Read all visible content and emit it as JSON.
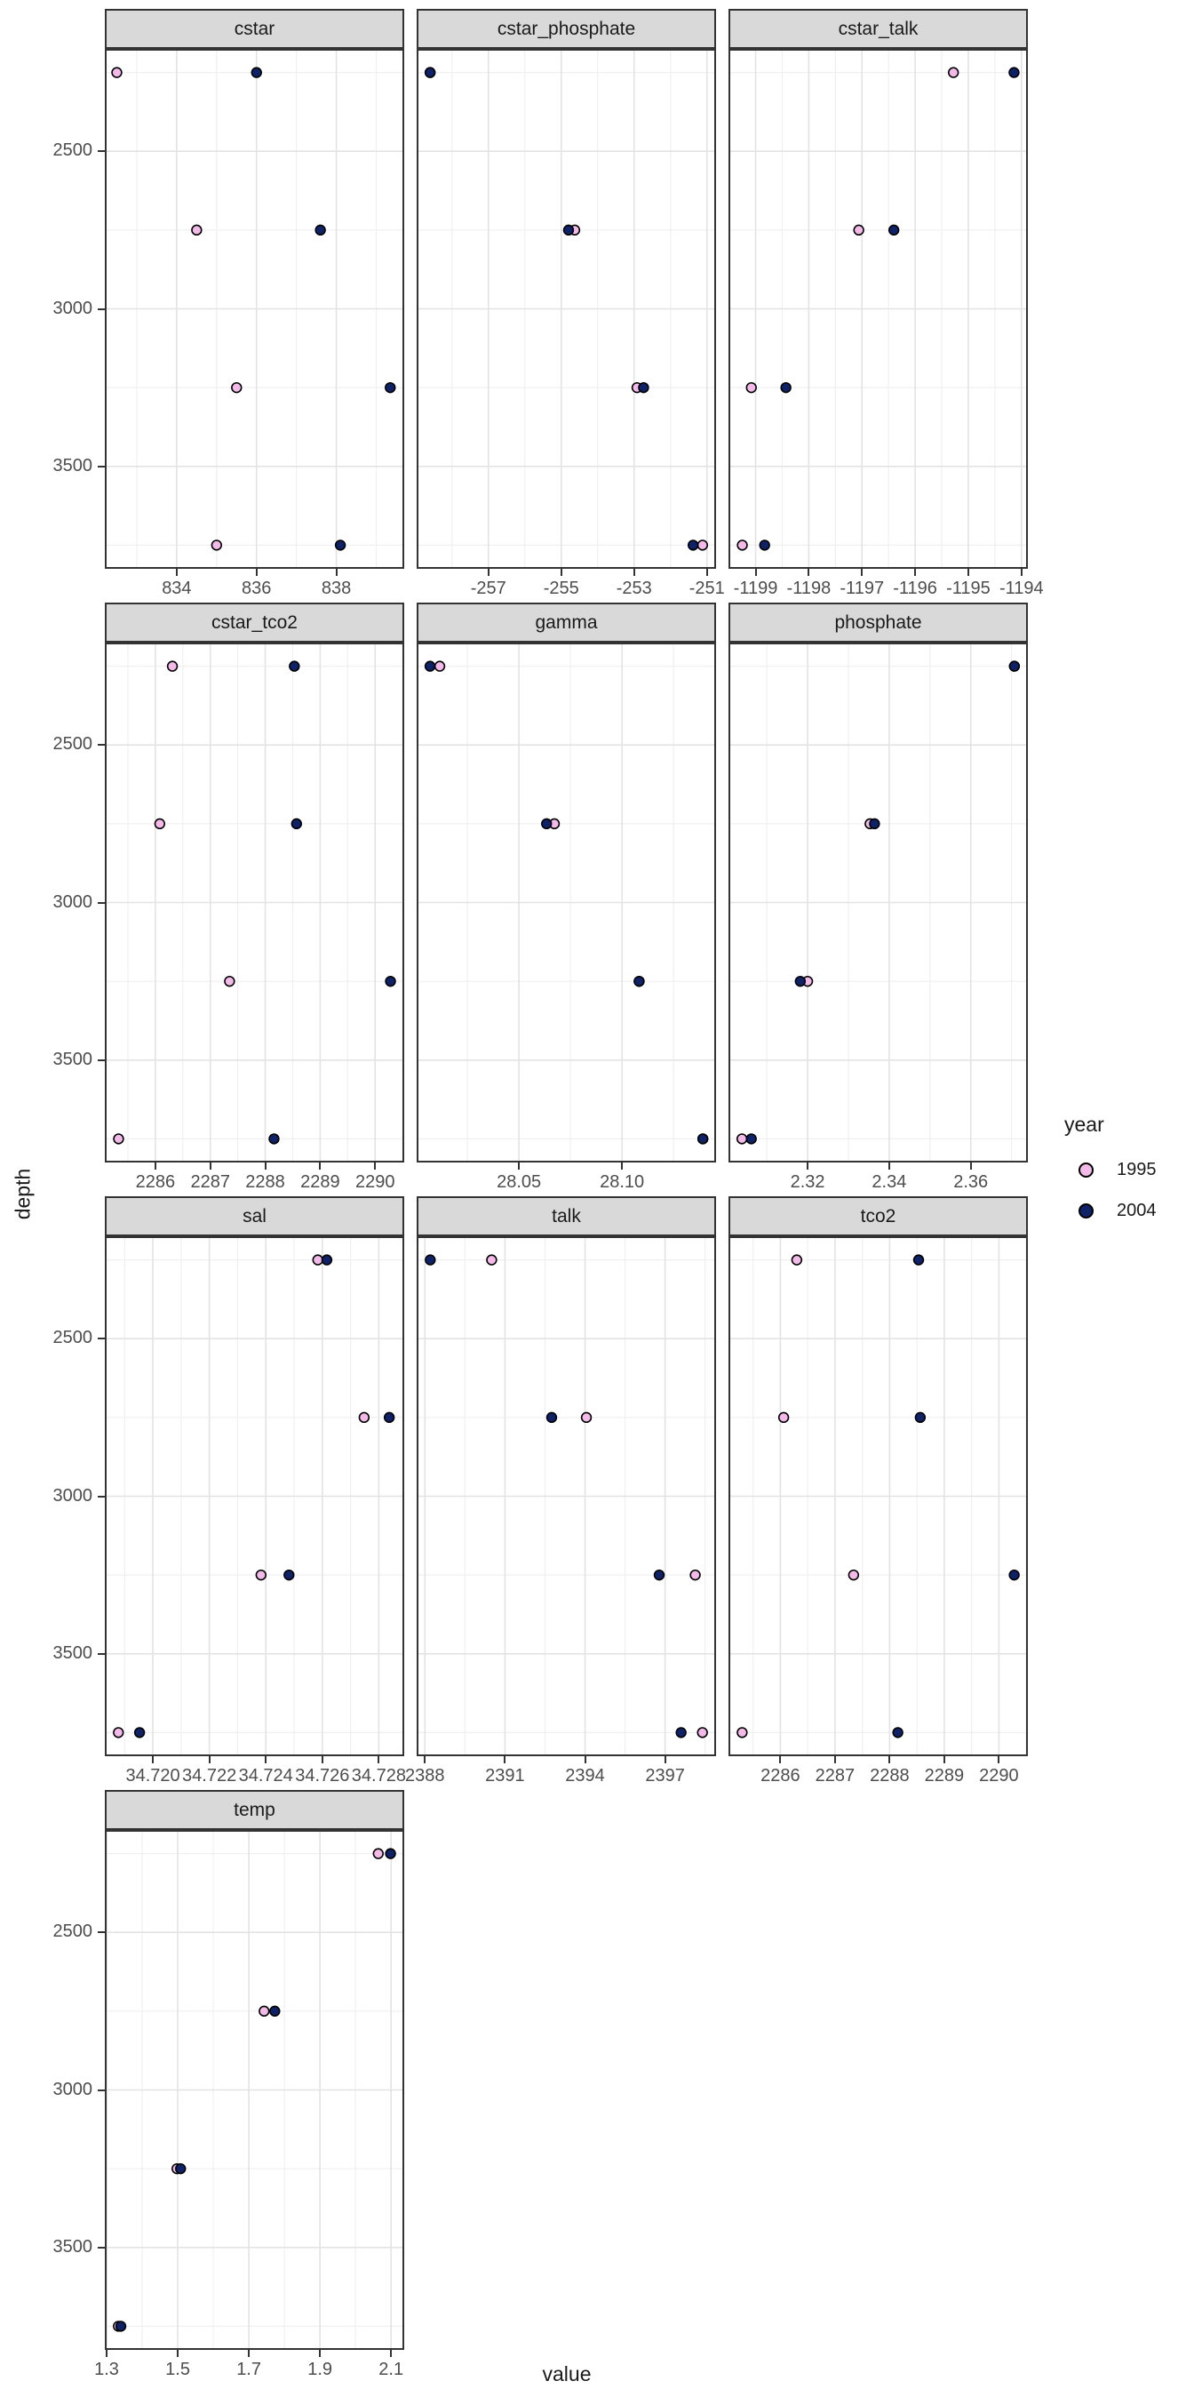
{
  "chart_data": {
    "type": "scatter",
    "title": "",
    "xlabel": "value",
    "ylabel": "depth",
    "y_reversed": true,
    "ylim": [
      2175,
      3825
    ],
    "y_ticks": [
      2500,
      3000,
      3500
    ],
    "y_tick_labels": [
      "2500",
      "3000",
      "3500"
    ],
    "y_minor": [
      2250,
      2750,
      3250,
      3750
    ],
    "depth_levels": [
      2250,
      2750,
      3250,
      3750
    ],
    "grid": true,
    "legend": {
      "title": "year",
      "position": "right",
      "items": [
        {
          "label": "1995",
          "fill": "#f2b9e9"
        },
        {
          "label": "2004",
          "fill": "#0f2167"
        }
      ]
    },
    "palette": {
      "point_1995": "#f2b9e9",
      "point_2004": "#0f2167",
      "point_stroke": "#000000",
      "strip_bg": "#d9d9d9",
      "panel_border": "#333333",
      "grid_major": "#e3e3e3",
      "grid_minor": "#f0f0f0",
      "axis_text": "#4d4d4d",
      "background": "#ffffff"
    },
    "facets": [
      {
        "title": "cstar",
        "xlim": [
          832.2,
          839.7
        ],
        "x_ticks": [
          834,
          836,
          838
        ],
        "x_tick_labels": [
          "834",
          "836",
          "838"
        ],
        "series": [
          {
            "year": "1995",
            "points": [
              [
                832.5,
                2250
              ],
              [
                834.5,
                2750
              ],
              [
                835.5,
                3250
              ],
              [
                835.0,
                3750
              ]
            ]
          },
          {
            "year": "2004",
            "points": [
              [
                836.0,
                2250
              ],
              [
                837.6,
                2750
              ],
              [
                839.35,
                3250
              ],
              [
                838.1,
                3750
              ]
            ]
          }
        ]
      },
      {
        "title": "cstar_phosphate",
        "xlim": [
          -258.97,
          -250.75
        ],
        "x_ticks": [
          -257,
          -255,
          -253,
          -251
        ],
        "x_tick_labels": [
          "-257",
          "-255",
          "-253",
          "-251"
        ],
        "series": [
          {
            "year": "1995",
            "points": [
              [
                -258.6,
                2250
              ],
              [
                -254.63,
                2750
              ],
              [
                -252.92,
                3250
              ],
              [
                -251.12,
                3750
              ]
            ]
          },
          {
            "year": "2004",
            "points": [
              [
                -258.6,
                2250
              ],
              [
                -254.8,
                2750
              ],
              [
                -252.74,
                3250
              ],
              [
                -251.38,
                3750
              ]
            ]
          }
        ]
      },
      {
        "title": "cstar_talk",
        "xlim": [
          -1199.51,
          -1193.88
        ],
        "x_ticks": [
          -1199,
          -1198,
          -1197,
          -1196,
          -1195,
          -1194
        ],
        "x_tick_labels": [
          "-1199",
          "-1198",
          "-1197",
          "-1196",
          "-1195",
          "-1194"
        ],
        "series": [
          {
            "year": "1995",
            "points": [
              [
                -1195.28,
                2250
              ],
              [
                -1197.06,
                2750
              ],
              [
                -1199.08,
                3250
              ],
              [
                -1199.25,
                3750
              ]
            ]
          },
          {
            "year": "2004",
            "points": [
              [
                -1194.14,
                2250
              ],
              [
                -1196.4,
                2750
              ],
              [
                -1198.43,
                3250
              ],
              [
                -1198.83,
                3750
              ]
            ]
          }
        ]
      },
      {
        "title": "cstar_tco2",
        "xlim": [
          2285.08,
          2290.53
        ],
        "x_ticks": [
          2286,
          2287,
          2288,
          2289,
          2290
        ],
        "x_tick_labels": [
          "2286",
          "2287",
          "2288",
          "2289",
          "2290"
        ],
        "series": [
          {
            "year": "1995",
            "points": [
              [
                2286.31,
                2250
              ],
              [
                2286.08,
                2750
              ],
              [
                2287.35,
                3250
              ],
              [
                2285.33,
                3750
              ]
            ]
          },
          {
            "year": "2004",
            "points": [
              [
                2288.53,
                2250
              ],
              [
                2288.57,
                2750
              ],
              [
                2290.28,
                3250
              ],
              [
                2288.16,
                3750
              ]
            ]
          }
        ]
      },
      {
        "title": "gamma",
        "xlim": [
          28.0004,
          28.1456
        ],
        "x_ticks": [
          28.05,
          28.1
        ],
        "x_tick_labels": [
          "28.05",
          "28.10"
        ],
        "series": [
          {
            "year": "1995",
            "points": [
              [
                28.0116,
                2250
              ],
              [
                28.0672,
                2750
              ],
              [
                28.1083,
                3250
              ],
              [
                28.1392,
                3750
              ]
            ]
          },
          {
            "year": "2004",
            "points": [
              [
                28.0069,
                2250
              ],
              [
                28.0634,
                2750
              ],
              [
                28.1083,
                3250
              ],
              [
                28.1392,
                3750
              ]
            ]
          }
        ]
      },
      {
        "title": "phosphate",
        "xlim": [
          2.3006,
          2.374
        ],
        "x_ticks": [
          2.32,
          2.34,
          2.36
        ],
        "x_tick_labels": [
          "2.32",
          "2.34",
          "2.36"
        ],
        "series": [
          {
            "year": "1995",
            "points": [
              [
                2.3707,
                2250
              ],
              [
                2.3353,
                2750
              ],
              [
                2.32,
                3250
              ],
              [
                2.3039,
                3750
              ]
            ]
          },
          {
            "year": "2004",
            "points": [
              [
                2.3707,
                2250
              ],
              [
                2.3364,
                2750
              ],
              [
                2.3182,
                3250
              ],
              [
                2.3062,
                3750
              ]
            ]
          }
        ]
      },
      {
        "title": "sal",
        "xlim": [
          34.7183,
          34.7289
        ],
        "x_ticks": [
          34.72,
          34.722,
          34.724,
          34.726,
          34.728
        ],
        "x_tick_labels": [
          "34.720",
          "34.722",
          "34.724",
          "34.726",
          "34.728"
        ],
        "series": [
          {
            "year": "1995",
            "points": [
              [
                34.72584,
                2250
              ],
              [
                34.72748,
                2750
              ],
              [
                34.72383,
                3250
              ],
              [
                34.71878,
                3750
              ]
            ]
          },
          {
            "year": "2004",
            "points": [
              [
                34.72616,
                2250
              ],
              [
                34.72837,
                2750
              ],
              [
                34.72482,
                3250
              ],
              [
                34.71953,
                3750
              ]
            ]
          }
        ]
      },
      {
        "title": "talk",
        "xlim": [
          2387.69,
          2398.91
        ],
        "x_ticks": [
          2388,
          2391,
          2394,
          2397
        ],
        "x_tick_labels": [
          "2388",
          "2391",
          "2394",
          "2397"
        ],
        "series": [
          {
            "year": "1995",
            "points": [
              [
                2390.5,
                2250
              ],
              [
                2394.05,
                2750
              ],
              [
                2398.13,
                3250
              ],
              [
                2398.4,
                3750
              ]
            ]
          },
          {
            "year": "2004",
            "points": [
              [
                2388.2,
                2250
              ],
              [
                2392.75,
                2750
              ],
              [
                2396.78,
                3250
              ],
              [
                2397.6,
                3750
              ]
            ]
          }
        ]
      },
      {
        "title": "tco2",
        "xlim": [
          2285.05,
          2290.53
        ],
        "x_ticks": [
          2286,
          2287,
          2288,
          2289,
          2290
        ],
        "x_tick_labels": [
          "2286",
          "2287",
          "2288",
          "2289",
          "2290"
        ],
        "series": [
          {
            "year": "1995",
            "points": [
              [
                2286.3,
                2250
              ],
              [
                2286.06,
                2750
              ],
              [
                2287.34,
                3250
              ],
              [
                2285.3,
                3750
              ]
            ]
          },
          {
            "year": "2004",
            "points": [
              [
                2288.53,
                2250
              ],
              [
                2288.56,
                2750
              ],
              [
                2290.28,
                3250
              ],
              [
                2288.15,
                3750
              ]
            ]
          }
        ]
      },
      {
        "title": "temp",
        "xlim": [
          1.295,
          2.137
        ],
        "x_ticks": [
          1.3,
          1.5,
          1.7,
          1.9,
          2.1
        ],
        "x_tick_labels": [
          "1.3",
          "1.5",
          "1.7",
          "1.9",
          "2.1"
        ],
        "series": [
          {
            "year": "1995",
            "points": [
              [
                2.064,
                2250
              ],
              [
                1.743,
                2750
              ],
              [
                1.498,
                3250
              ],
              [
                1.333,
                3750
              ]
            ]
          },
          {
            "year": "2004",
            "points": [
              [
                2.0985,
                2250
              ],
              [
                1.773,
                2750
              ],
              [
                1.508,
                3250
              ],
              [
                1.34,
                3750
              ]
            ]
          }
        ]
      }
    ]
  }
}
